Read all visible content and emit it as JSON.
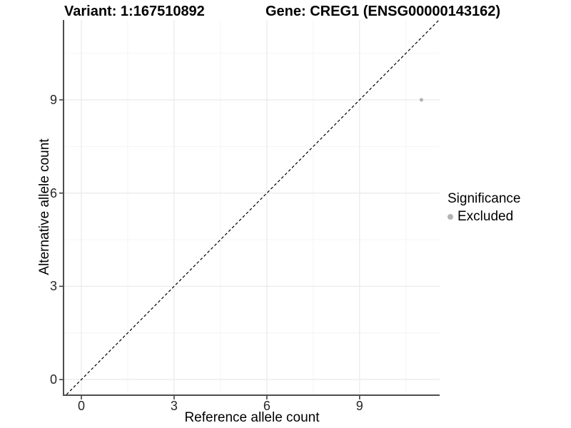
{
  "chart_data": {
    "type": "scatter",
    "title_left": "Variant: 1:167510892",
    "title_right": "Gene: CREG1 (ENSG00000143162)",
    "xlabel": "Reference allele count",
    "ylabel": "Alternative allele count",
    "xlim": [
      -0.554,
      11.59
    ],
    "ylim": [
      -0.48,
      11.57
    ],
    "xticks": [
      0,
      3,
      6,
      9
    ],
    "yticks": [
      0,
      3,
      6,
      9
    ],
    "x_minor": [
      1.5,
      4.5,
      7.5,
      10.5
    ],
    "y_minor": [
      1.5,
      4.5,
      7.5,
      10.5
    ],
    "grid": true,
    "identity_line": {
      "slope": 1,
      "intercept": 0,
      "style": "dashed",
      "color": "#000000"
    },
    "series": [
      {
        "name": "Excluded",
        "color": "#b3b3b3",
        "points": [
          {
            "x": 11,
            "y": 9
          }
        ]
      }
    ],
    "legend": {
      "title": "Significance",
      "position": "right",
      "items": [
        {
          "label": "Excluded",
          "color": "#b3b3b3"
        }
      ]
    }
  },
  "colors": {
    "axis_line": "#4d4d4d",
    "grid_major": "#ebebeb",
    "grid_minor": "#f4f4f4",
    "tick_mark": "#333333"
  }
}
